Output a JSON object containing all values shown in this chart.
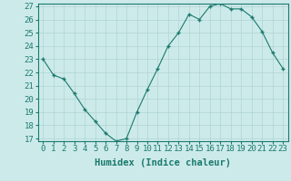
{
  "x": [
    0,
    1,
    2,
    3,
    4,
    5,
    6,
    7,
    8,
    9,
    10,
    11,
    12,
    13,
    14,
    15,
    16,
    17,
    18,
    19,
    20,
    21,
    22,
    23
  ],
  "y": [
    23.0,
    21.8,
    21.5,
    20.4,
    19.2,
    18.3,
    17.4,
    16.8,
    17.0,
    19.0,
    20.7,
    22.3,
    24.0,
    25.0,
    26.4,
    26.0,
    27.0,
    27.2,
    26.8,
    26.8,
    26.2,
    25.1,
    23.5,
    22.3
  ],
  "xlabel": "Humidex (Indice chaleur)",
  "line_color": "#1a7a6e",
  "marker": "+",
  "bg_color": "#cdeaea",
  "grid_color": "#b0d4d4",
  "ylim": [
    17,
    27
  ],
  "yticks": [
    17,
    18,
    19,
    20,
    21,
    22,
    23,
    24,
    25,
    26,
    27
  ],
  "xticks": [
    0,
    1,
    2,
    3,
    4,
    5,
    6,
    7,
    8,
    9,
    10,
    11,
    12,
    13,
    14,
    15,
    16,
    17,
    18,
    19,
    20,
    21,
    22,
    23
  ],
  "tick_fontsize": 6.5,
  "label_fontsize": 7.5
}
